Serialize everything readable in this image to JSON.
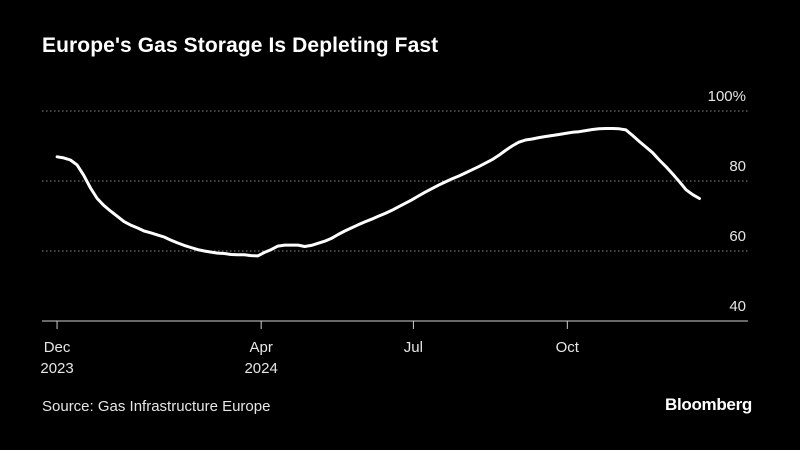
{
  "header": {
    "title": "Europe's Gas Storage Is Depleting Fast"
  },
  "footer": {
    "source": "Source: Gas Infrastructure Europe",
    "brand": "Bloomberg"
  },
  "colors": {
    "background": "#000000",
    "line": "#ffffff",
    "grid": "#8a8a8a",
    "text": "#e6e6e6"
  },
  "chart_data": {
    "type": "line",
    "title": "Europe's Gas Storage Is Depleting Fast",
    "xlabel": "",
    "ylabel": "",
    "ylim": [
      40,
      100
    ],
    "xlim": [
      "2023-11-22",
      "2025-01-17"
    ],
    "y_axis_position": "right",
    "grid": "horizontal-dotted",
    "y_ticks": [
      {
        "value": 100,
        "label": "100%"
      },
      {
        "value": 80,
        "label": "80"
      },
      {
        "value": 60,
        "label": "60"
      },
      {
        "value": 40,
        "label": "40"
      }
    ],
    "x_ticks": [
      {
        "date": "2023-12-01",
        "label": "Dec",
        "sublabel": "2023"
      },
      {
        "date": "2024-04-01",
        "label": "Apr",
        "sublabel": "2024"
      },
      {
        "date": "2024-07-01",
        "label": "Jul",
        "sublabel": ""
      },
      {
        "date": "2024-10-01",
        "label": "Oct",
        "sublabel": ""
      }
    ],
    "series": [
      {
        "name": "",
        "points": [
          [
            "2023-12-01",
            86.9
          ],
          [
            "2023-12-05",
            86.6
          ],
          [
            "2023-12-09",
            86.0
          ],
          [
            "2023-12-13",
            84.6
          ],
          [
            "2023-12-17",
            81.6
          ],
          [
            "2023-12-21",
            78.0
          ],
          [
            "2023-12-25",
            75.0
          ],
          [
            "2023-12-29",
            73.0
          ],
          [
            "2024-01-02",
            71.4
          ],
          [
            "2024-01-06",
            69.9
          ],
          [
            "2024-01-10",
            68.4
          ],
          [
            "2024-01-14",
            67.4
          ],
          [
            "2024-01-18",
            66.6
          ],
          [
            "2024-01-22",
            65.7
          ],
          [
            "2024-01-26",
            65.2
          ],
          [
            "2024-01-30",
            64.6
          ],
          [
            "2024-02-03",
            64.0
          ],
          [
            "2024-02-07",
            63.1
          ],
          [
            "2024-02-11",
            62.3
          ],
          [
            "2024-02-15",
            61.6
          ],
          [
            "2024-02-19",
            61.0
          ],
          [
            "2024-02-23",
            60.4
          ],
          [
            "2024-02-27",
            60.0
          ],
          [
            "2024-03-02",
            59.7
          ],
          [
            "2024-03-06",
            59.4
          ],
          [
            "2024-03-10",
            59.3
          ],
          [
            "2024-03-14",
            59.0
          ],
          [
            "2024-03-18",
            58.9
          ],
          [
            "2024-03-22",
            58.9
          ],
          [
            "2024-03-26",
            58.7
          ],
          [
            "2024-03-30",
            58.6
          ],
          [
            "2024-04-03",
            59.6
          ],
          [
            "2024-04-07",
            60.4
          ],
          [
            "2024-04-11",
            61.4
          ],
          [
            "2024-04-15",
            61.7
          ],
          [
            "2024-04-19",
            61.7
          ],
          [
            "2024-04-23",
            61.7
          ],
          [
            "2024-04-27",
            61.3
          ],
          [
            "2024-05-01",
            61.6
          ],
          [
            "2024-05-05",
            62.2
          ],
          [
            "2024-05-09",
            62.8
          ],
          [
            "2024-05-13",
            63.6
          ],
          [
            "2024-05-17",
            64.7
          ],
          [
            "2024-05-21",
            65.7
          ],
          [
            "2024-05-25",
            66.6
          ],
          [
            "2024-05-29",
            67.5
          ],
          [
            "2024-06-02",
            68.3
          ],
          [
            "2024-06-06",
            69.1
          ],
          [
            "2024-06-10",
            69.9
          ],
          [
            "2024-06-14",
            70.7
          ],
          [
            "2024-06-18",
            71.6
          ],
          [
            "2024-06-22",
            72.6
          ],
          [
            "2024-06-26",
            73.6
          ],
          [
            "2024-06-30",
            74.6
          ],
          [
            "2024-07-04",
            75.7
          ],
          [
            "2024-07-08",
            76.8
          ],
          [
            "2024-07-12",
            77.8
          ],
          [
            "2024-07-16",
            78.8
          ],
          [
            "2024-07-20",
            79.7
          ],
          [
            "2024-07-24",
            80.6
          ],
          [
            "2024-07-28",
            81.4
          ],
          [
            "2024-08-01",
            82.3
          ],
          [
            "2024-08-05",
            83.2
          ],
          [
            "2024-08-09",
            84.1
          ],
          [
            "2024-08-13",
            85.1
          ],
          [
            "2024-08-17",
            86.1
          ],
          [
            "2024-08-21",
            87.3
          ],
          [
            "2024-08-25",
            88.7
          ],
          [
            "2024-08-29",
            90.0
          ],
          [
            "2024-09-02",
            91.1
          ],
          [
            "2024-09-06",
            91.7
          ],
          [
            "2024-09-10",
            92.0
          ],
          [
            "2024-09-14",
            92.4
          ],
          [
            "2024-09-18",
            92.7
          ],
          [
            "2024-09-22",
            93.0
          ],
          [
            "2024-09-26",
            93.3
          ],
          [
            "2024-09-30",
            93.6
          ],
          [
            "2024-10-04",
            93.9
          ],
          [
            "2024-10-08",
            94.1
          ],
          [
            "2024-10-12",
            94.4
          ],
          [
            "2024-10-16",
            94.7
          ],
          [
            "2024-10-20",
            94.9
          ],
          [
            "2024-10-24",
            95.0
          ],
          [
            "2024-10-28",
            95.0
          ],
          [
            "2024-11-01",
            94.9
          ],
          [
            "2024-11-05",
            94.6
          ],
          [
            "2024-11-09",
            93.0
          ],
          [
            "2024-11-13",
            91.3
          ],
          [
            "2024-11-17",
            89.7
          ],
          [
            "2024-11-21",
            88.1
          ],
          [
            "2024-11-25",
            86.0
          ],
          [
            "2024-11-29",
            84.1
          ],
          [
            "2024-12-03",
            82.0
          ],
          [
            "2024-12-07",
            79.8
          ],
          [
            "2024-12-11",
            77.5
          ],
          [
            "2024-12-15",
            76.1
          ],
          [
            "2024-12-19",
            75.0
          ]
        ]
      }
    ]
  }
}
